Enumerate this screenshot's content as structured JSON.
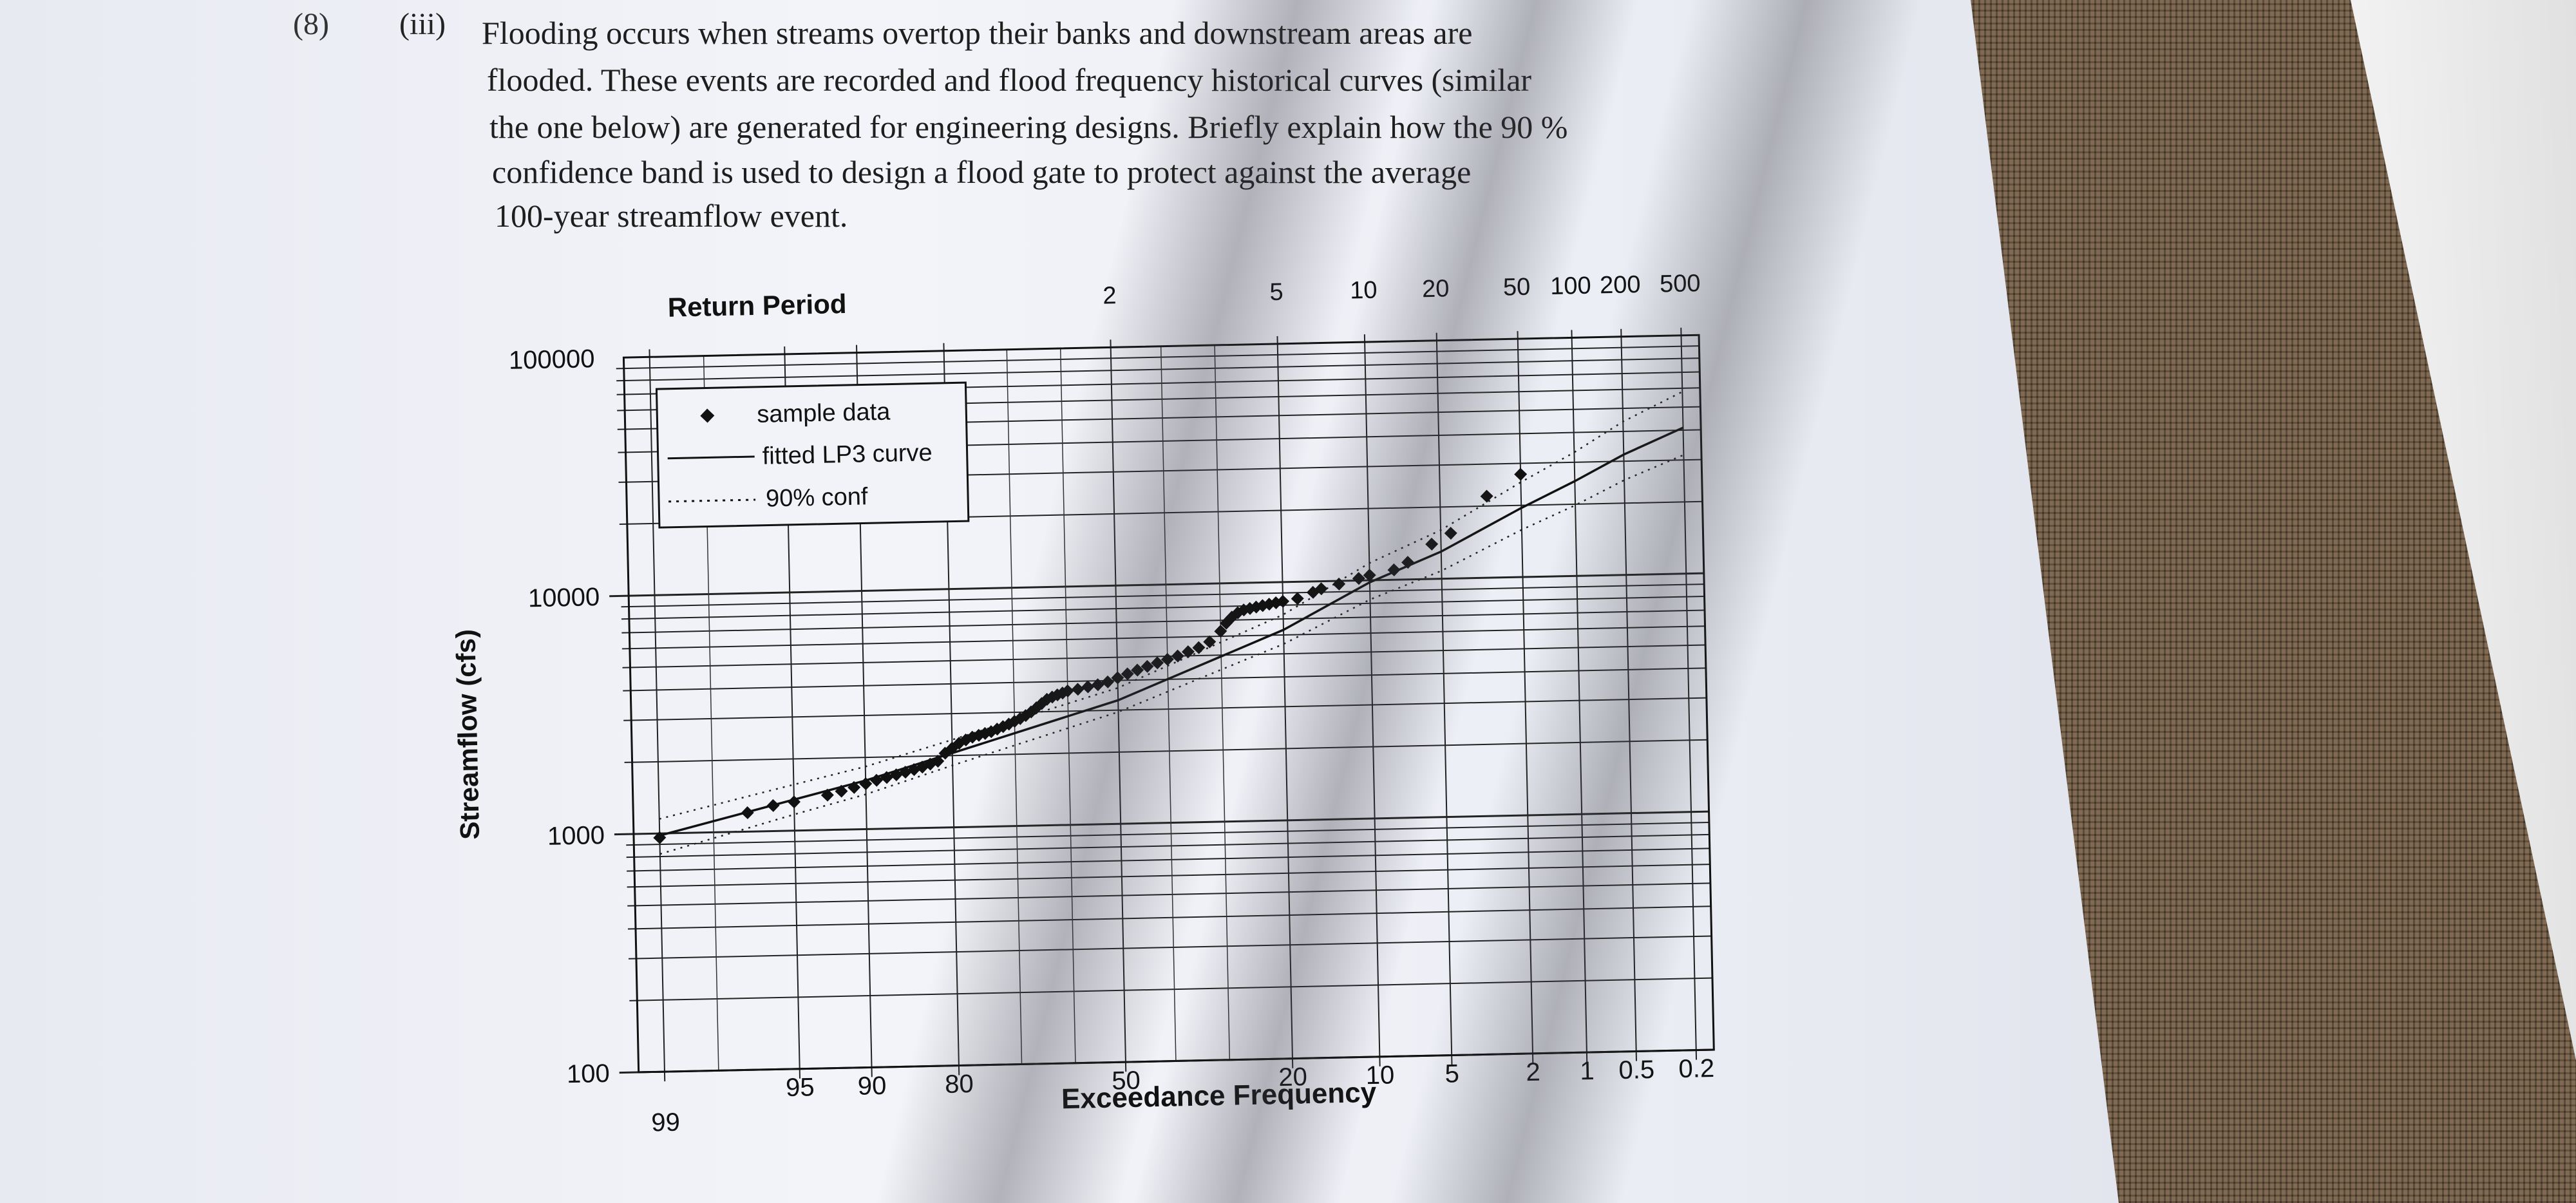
{
  "question": {
    "number": "(8)",
    "part": "(iii)",
    "lines": [
      "Flooding occurs when streams overtop their banks and downstream areas are",
      "flooded. These events are recorded and flood frequency historical curves (similar",
      "the one below) are generated for engineering designs. Briefly explain how the 90 %",
      "confidence band is used to design a flood gate to protect against the average",
      "100-year streamflow event."
    ]
  },
  "chart_data": {
    "type": "scatter",
    "title": "Return Period",
    "xlabel": "Exceedance Frequency",
    "ylabel": "Streamflow (cfs)",
    "y_scale": "log",
    "ylim": [
      100,
      100000
    ],
    "y_ticks": [
      100,
      1000,
      10000,
      100000
    ],
    "x_ticks": [
      {
        "p": 99,
        "label": "99"
      },
      {
        "p": 95,
        "label": "95"
      },
      {
        "p": 90,
        "label": "90"
      },
      {
        "p": 80,
        "label": "80"
      },
      {
        "p": 50,
        "label": "50"
      },
      {
        "p": 20,
        "label": "20"
      },
      {
        "p": 10,
        "label": "10"
      },
      {
        "p": 5,
        "label": "5"
      },
      {
        "p": 2,
        "label": "2"
      },
      {
        "p": 1,
        "label": "1"
      },
      {
        "p": 0.5,
        "label": "0.5"
      },
      {
        "p": 0.2,
        "label": "0.2"
      }
    ],
    "return_period_ticks": [
      {
        "p": 50,
        "label": "2"
      },
      {
        "p": 20,
        "label": "5"
      },
      {
        "p": 10,
        "label": "10"
      },
      {
        "p": 5,
        "label": "20"
      },
      {
        "p": 2,
        "label": "50"
      },
      {
        "p": 1,
        "label": "100"
      },
      {
        "p": 0.5,
        "label": "200"
      },
      {
        "p": 0.2,
        "label": "500"
      }
    ],
    "legend": [
      "sample data",
      "fitted LP3 curve",
      "90% conf"
    ],
    "legend_position": "top-left",
    "grid": true,
    "series": [
      {
        "name": "sample data",
        "x": [
          99,
          97,
          96,
          95,
          93,
          92,
          91,
          90,
          89,
          88,
          87,
          86,
          85,
          84,
          83,
          82,
          81,
          80,
          79,
          78,
          77,
          76,
          75,
          74,
          73,
          72,
          71,
          70,
          69,
          68,
          67,
          66,
          65,
          64,
          63,
          62,
          61,
          60,
          58,
          56,
          54,
          52,
          50,
          48,
          46,
          44,
          42,
          40,
          38,
          36,
          34,
          32,
          30,
          29,
          28,
          27,
          26,
          25,
          24,
          23,
          22,
          21,
          20,
          18,
          16,
          15,
          13,
          11,
          10,
          8,
          7,
          5.5,
          4.5,
          3,
          2
        ],
        "y": [
          960,
          1200,
          1280,
          1320,
          1400,
          1450,
          1500,
          1550,
          1600,
          1640,
          1680,
          1720,
          1760,
          1800,
          1850,
          1900,
          2050,
          2150,
          2250,
          2320,
          2380,
          2420,
          2460,
          2500,
          2560,
          2620,
          2680,
          2750,
          2820,
          2900,
          3000,
          3120,
          3250,
          3380,
          3450,
          3520,
          3580,
          3650,
          3700,
          3780,
          3850,
          3950,
          4100,
          4250,
          4400,
          4550,
          4700,
          4850,
          5000,
          5200,
          5400,
          5700,
          6300,
          6800,
          7200,
          7500,
          7700,
          7800,
          7900,
          8000,
          8100,
          8200,
          8300,
          8500,
          9000,
          9300,
          9700,
          10200,
          10500,
          11000,
          11800,
          14000,
          15500,
          22000,
          27000
        ]
      },
      {
        "name": "fitted LP3 curve",
        "x": [
          99,
          95,
          90,
          80,
          50,
          20,
          10,
          5,
          2,
          1,
          0.5,
          0.2
        ],
        "y": [
          980,
          1350,
          1600,
          2050,
          3300,
          6300,
          9800,
          13000,
          19500,
          25000,
          32000,
          41000
        ]
      },
      {
        "name": "90% conf",
        "x": [
          99,
          95,
          90,
          80,
          50,
          20,
          10,
          5,
          2,
          1,
          0.5,
          0.2
        ],
        "y": [
          1150,
          1560,
          1830,
          2330,
          3720,
          7300,
          11800,
          16000,
          25000,
          33000,
          44000,
          58000
        ]
      },
      {
        "name": "90% conf",
        "x": [
          99,
          95,
          90,
          80,
          50,
          20,
          10,
          5,
          2,
          1,
          0.5,
          0.2
        ],
        "y": [
          820,
          1170,
          1400,
          1820,
          2950,
          5500,
          8300,
          10800,
          15800,
          19800,
          25000,
          31500
        ]
      }
    ]
  }
}
